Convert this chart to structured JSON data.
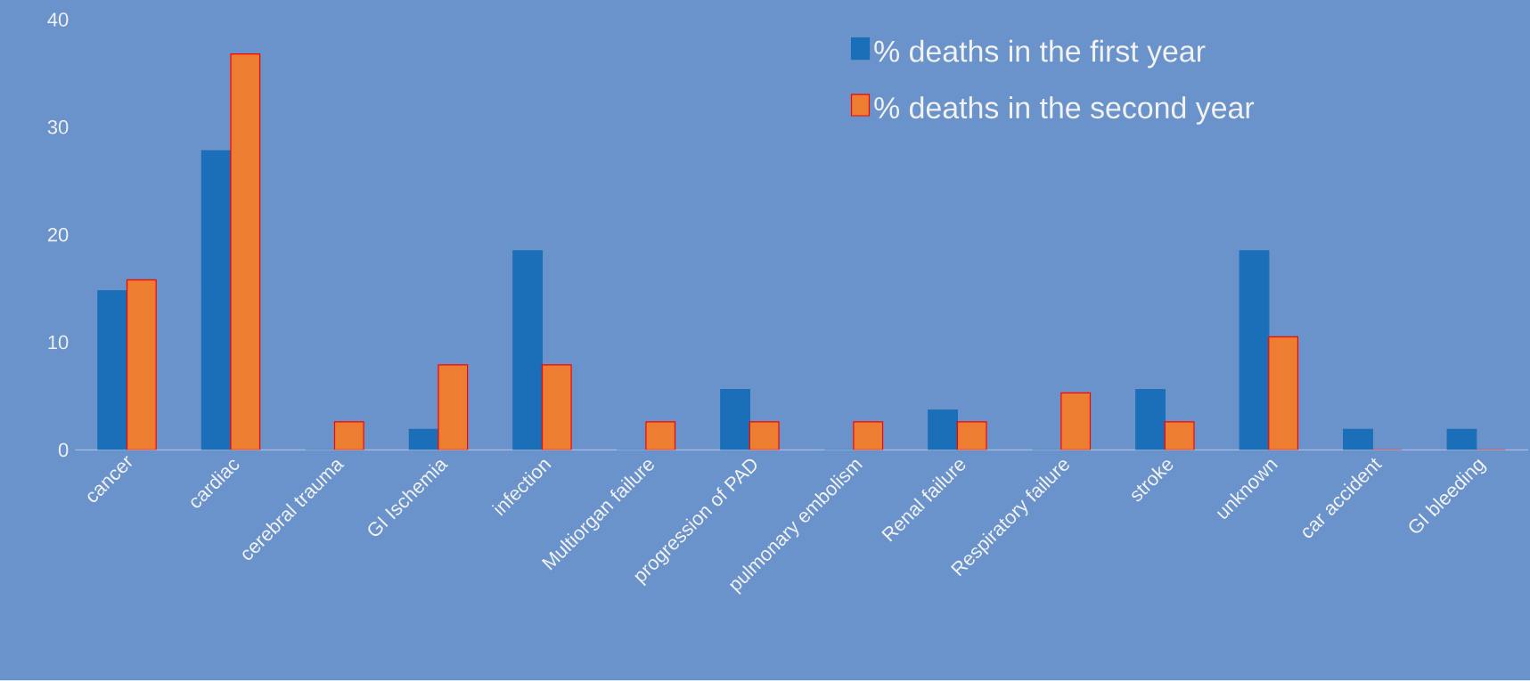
{
  "chart_data": {
    "type": "bar",
    "categories": [
      "cancer",
      "cardiac",
      "cerebral trauma",
      "GI Ischemia",
      "infection",
      "Multiorgan failure",
      "progression of  PAD",
      "pulmonary embolism",
      "Renal failure",
      "Respiratory failure",
      "stroke",
      "unknown",
      "car accident",
      "GI bleeding"
    ],
    "series": [
      {
        "name": "% deaths in the first year",
        "color": "#1a6fb8",
        "values": [
          14.8,
          27.8,
          0,
          1.9,
          18.5,
          0,
          5.6,
          0,
          3.7,
          0,
          5.6,
          18.5,
          1.9,
          1.9
        ]
      },
      {
        "name": "% deaths in the second year",
        "color": "#ed7d31",
        "values": [
          15.8,
          36.8,
          2.6,
          7.9,
          7.9,
          2.6,
          2.6,
          2.6,
          2.6,
          5.3,
          2.6,
          10.5,
          0,
          0
        ]
      }
    ],
    "ylim": [
      0,
      40
    ],
    "yticks": [
      0,
      10,
      20,
      30,
      40
    ],
    "grid": false,
    "legend": "top right"
  }
}
